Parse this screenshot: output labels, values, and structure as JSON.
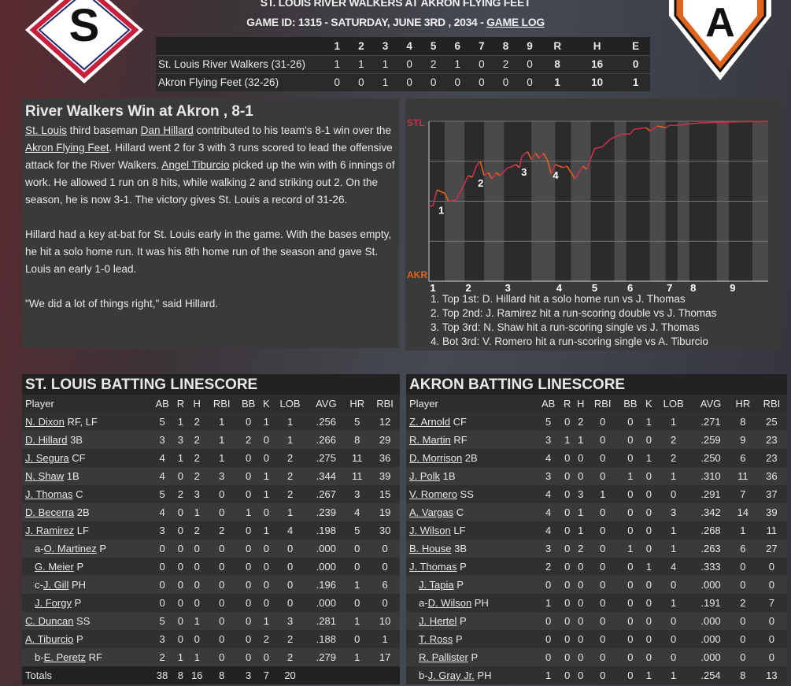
{
  "header": {
    "title": "ST. LOUIS RIVER WALKERS AT AKRON FLYING FEET",
    "game_info": "GAME ID: 1315 - SATURDAY, JUNE 3RD , 2034 - ",
    "game_log_link": "GAME LOG"
  },
  "logos": {
    "home_letter": "A",
    "away_letter": "S"
  },
  "linescore": {
    "columns": [
      "",
      "1",
      "2",
      "3",
      "4",
      "5",
      "6",
      "7",
      "8",
      "9",
      "R",
      "H",
      "E"
    ],
    "rows": [
      [
        "St. Louis River Walkers (31-26)",
        "1",
        "1",
        "1",
        "0",
        "2",
        "1",
        "0",
        "2",
        "0",
        "8",
        "16",
        "0"
      ],
      [
        "Akron Flying Feet (32-26)",
        "0",
        "0",
        "1",
        "0",
        "0",
        "0",
        "0",
        "0",
        "0",
        "1",
        "10",
        "1"
      ]
    ]
  },
  "article": {
    "headline": "River Walkers Win at Akron , 8-1",
    "p1": [
      {
        "t": "St. Louis",
        "link": true
      },
      {
        "t": " third baseman "
      },
      {
        "t": "Dan Hillard",
        "link": true
      },
      {
        "t": " contributed to his team's 8-1 win over the "
      },
      {
        "t": "Akron Flying Feet",
        "link": true
      },
      {
        "t": ". Hillard went 2 for 3 with 3 runs scored to lead the offensive attack for the River Walkers. "
      },
      {
        "t": "Angel Tiburcio",
        "link": true
      },
      {
        "t": " picked up the win with 6 innings of work. He allowed 1 run on 8 hits, while walking 2 and striking out 2. On the season, he is now 3-1. The victory gives St. Louis a record of 31-26."
      }
    ],
    "p2": "Hillard had a key at-bat for St. Louis early in the game. With the bases empty, he hit a solo home run. It was his 8th home run of the season and gave St. Louis an early 1-0 lead.",
    "p3": "\"We did a lot of things right,\" said Hillard."
  },
  "chart_data": {
    "type": "line",
    "top_label": "STL",
    "bottom_label": "AKR",
    "ylim": [
      0,
      100
    ],
    "xlim": [
      0,
      86
    ],
    "grid": true,
    "colors": {
      "stl": "#c8304c",
      "akr": "#e0641e"
    },
    "inning_ticks": [
      {
        "label": "1",
        "x": 1
      },
      {
        "label": "2",
        "x": 10
      },
      {
        "label": "3",
        "x": 20
      },
      {
        "label": "4",
        "x": 33
      },
      {
        "label": "5",
        "x": 42
      },
      {
        "label": "6",
        "x": 51
      },
      {
        "label": "7",
        "x": 61
      },
      {
        "label": "8",
        "x": 67
      },
      {
        "label": "9",
        "x": 77
      }
    ],
    "shaded_ranges": [
      [
        4,
        9
      ],
      [
        14,
        19
      ],
      [
        26,
        32
      ],
      [
        36,
        41
      ],
      [
        47,
        50
      ],
      [
        56,
        60
      ],
      [
        63,
        66
      ],
      [
        73,
        76
      ],
      [
        82,
        86
      ]
    ],
    "points": [
      [
        0,
        47
      ],
      [
        1,
        47
      ],
      [
        2,
        57
      ],
      [
        4,
        55
      ],
      [
        5,
        50
      ],
      [
        7,
        51
      ],
      [
        10,
        66
      ],
      [
        11,
        65
      ],
      [
        12,
        72
      ],
      [
        13,
        75
      ],
      [
        14,
        66
      ],
      [
        15,
        68
      ],
      [
        16,
        64
      ],
      [
        17,
        68
      ],
      [
        18,
        66
      ],
      [
        20,
        71
      ],
      [
        20.5,
        71
      ],
      [
        22,
        73
      ],
      [
        23,
        71
      ],
      [
        23.5,
        78
      ],
      [
        25,
        81
      ],
      [
        26,
        76
      ],
      [
        27,
        80
      ],
      [
        28,
        77
      ],
      [
        29,
        80
      ],
      [
        30,
        76
      ],
      [
        31,
        67
      ],
      [
        32,
        73
      ],
      [
        34,
        71
      ],
      [
        35,
        72
      ],
      [
        37,
        64
      ],
      [
        39,
        72
      ],
      [
        40,
        70
      ],
      [
        42,
        83
      ],
      [
        44,
        84
      ],
      [
        46,
        89
      ],
      [
        47,
        90
      ],
      [
        49,
        92
      ],
      [
        51,
        92
      ],
      [
        52,
        95
      ],
      [
        55,
        96
      ],
      [
        56,
        94
      ],
      [
        58,
        97
      ],
      [
        60,
        96
      ],
      [
        61,
        97.5
      ],
      [
        63,
        97.5
      ],
      [
        66,
        98.5
      ],
      [
        69,
        99
      ],
      [
        74,
        99.5
      ],
      [
        86,
        100
      ]
    ],
    "markers": [
      {
        "label": "1",
        "x": 2,
        "y": 47
      },
      {
        "label": "2",
        "x": 12,
        "y": 64
      },
      {
        "label": "3",
        "x": 23,
        "y": 71
      },
      {
        "label": "4",
        "x": 31,
        "y": 69
      }
    ],
    "notes": [
      "1. Top 1st: D. Hillard hit a solo home run vs J. Thomas",
      "2. Top 2nd: J. Ramirez hit a run-scoring double vs J. Thomas",
      "3. Top 3rd: N. Shaw hit a run-scoring single vs J. Thomas",
      "4. Bot 3rd: V. Romero hit a run-scoring single vs A. Tiburcio"
    ]
  },
  "batting": [
    {
      "title": "ST. LOUIS BATTING LINESCORE",
      "columns": [
        "Player",
        "AB",
        "R",
        "H",
        "RBI",
        "BB",
        "K",
        "LOB",
        "AVG",
        "HR",
        "RBI"
      ],
      "rows": [
        {
          "pre": "",
          "name": "N. Dixon",
          "pos": " RF, LF",
          "ind": 0,
          "s": [
            "5",
            "1",
            "2",
            "1",
            "0",
            "1",
            "1",
            ".256",
            "5",
            "12"
          ]
        },
        {
          "pre": "",
          "name": "D. Hillard",
          "pos": " 3B",
          "ind": 0,
          "s": [
            "3",
            "3",
            "2",
            "1",
            "2",
            "0",
            "1",
            ".266",
            "8",
            "29"
          ]
        },
        {
          "pre": "",
          "name": "J. Segura",
          "pos": " CF",
          "ind": 0,
          "s": [
            "4",
            "1",
            "2",
            "1",
            "0",
            "0",
            "2",
            ".275",
            "11",
            "36"
          ]
        },
        {
          "pre": "",
          "name": "N. Shaw",
          "pos": " 1B",
          "ind": 0,
          "s": [
            "4",
            "0",
            "2",
            "3",
            "0",
            "1",
            "2",
            ".344",
            "11",
            "39"
          ]
        },
        {
          "pre": "",
          "name": "J. Thomas",
          "pos": " C",
          "ind": 0,
          "s": [
            "5",
            "2",
            "3",
            "0",
            "0",
            "1",
            "2",
            ".267",
            "3",
            "15"
          ]
        },
        {
          "pre": "",
          "name": "D. Becerra",
          "pos": " 2B",
          "ind": 0,
          "s": [
            "4",
            "0",
            "1",
            "0",
            "1",
            "0",
            "1",
            ".239",
            "4",
            "19"
          ]
        },
        {
          "pre": "",
          "name": "J. Ramirez",
          "pos": " LF",
          "ind": 0,
          "s": [
            "3",
            "0",
            "2",
            "2",
            "0",
            "1",
            "4",
            ".198",
            "5",
            "30"
          ]
        },
        {
          "pre": "a-",
          "name": "O. Martinez",
          "pos": " P",
          "ind": 1,
          "s": [
            "0",
            "0",
            "0",
            "0",
            "0",
            "0",
            "0",
            ".000",
            "0",
            "0"
          ]
        },
        {
          "pre": "",
          "name": "G. Meier",
          "pos": " P",
          "ind": 1,
          "s": [
            "0",
            "0",
            "0",
            "0",
            "0",
            "0",
            "0",
            ".000",
            "0",
            "0"
          ]
        },
        {
          "pre": "c-",
          "name": "J. Gill",
          "pos": " PH",
          "ind": 1,
          "s": [
            "0",
            "0",
            "0",
            "0",
            "0",
            "0",
            "0",
            ".196",
            "1",
            "6"
          ]
        },
        {
          "pre": "",
          "name": "J. Forgy",
          "pos": " P",
          "ind": 1,
          "s": [
            "0",
            "0",
            "0",
            "0",
            "0",
            "0",
            "0",
            ".000",
            "0",
            "0"
          ]
        },
        {
          "pre": "",
          "name": "C. Duncan",
          "pos": " SS",
          "ind": 0,
          "s": [
            "5",
            "0",
            "1",
            "0",
            "0",
            "1",
            "3",
            ".281",
            "1",
            "10"
          ]
        },
        {
          "pre": "",
          "name": "A. Tiburcio",
          "pos": " P",
          "ind": 0,
          "s": [
            "3",
            "0",
            "0",
            "0",
            "0",
            "2",
            "2",
            ".188",
            "0",
            "1"
          ]
        },
        {
          "pre": "b-",
          "name": "E. Peretz",
          "pos": " RF",
          "ind": 1,
          "s": [
            "2",
            "1",
            "1",
            "0",
            "0",
            "0",
            "2",
            ".279",
            "1",
            "17"
          ]
        }
      ],
      "totals": {
        "label": "Totals",
        "s": [
          "38",
          "8",
          "16",
          "8",
          "3",
          "7",
          "20",
          "",
          "",
          ""
        ]
      }
    },
    {
      "title": "AKRON BATTING LINESCORE",
      "columns": [
        "Player",
        "AB",
        "R",
        "H",
        "RBI",
        "BB",
        "K",
        "LOB",
        "AVG",
        "HR",
        "RBI"
      ],
      "rows": [
        {
          "pre": "",
          "name": "Z. Arnold",
          "pos": " CF",
          "ind": 0,
          "s": [
            "5",
            "0",
            "2",
            "0",
            "0",
            "1",
            "1",
            ".271",
            "8",
            "25"
          ]
        },
        {
          "pre": "",
          "name": "R. Martin",
          "pos": " RF",
          "ind": 0,
          "s": [
            "3",
            "1",
            "1",
            "0",
            "0",
            "0",
            "2",
            ".259",
            "9",
            "23"
          ]
        },
        {
          "pre": "",
          "name": "D. Morrison",
          "pos": " 2B",
          "ind": 0,
          "s": [
            "4",
            "0",
            "0",
            "0",
            "0",
            "1",
            "2",
            ".250",
            "6",
            "23"
          ]
        },
        {
          "pre": "",
          "name": "J. Polk",
          "pos": " 1B",
          "ind": 0,
          "s": [
            "3",
            "0",
            "0",
            "0",
            "1",
            "0",
            "1",
            ".310",
            "11",
            "36"
          ]
        },
        {
          "pre": "",
          "name": "V. Romero",
          "pos": " SS",
          "ind": 0,
          "s": [
            "4",
            "0",
            "3",
            "1",
            "0",
            "0",
            "0",
            ".291",
            "7",
            "37"
          ]
        },
        {
          "pre": "",
          "name": "A. Vargas",
          "pos": " C",
          "ind": 0,
          "s": [
            "4",
            "0",
            "1",
            "0",
            "0",
            "0",
            "3",
            ".342",
            "14",
            "39"
          ]
        },
        {
          "pre": "",
          "name": "J. Wilson",
          "pos": " LF",
          "ind": 0,
          "s": [
            "4",
            "0",
            "1",
            "0",
            "0",
            "0",
            "1",
            ".268",
            "1",
            "11"
          ]
        },
        {
          "pre": "",
          "name": "B. House",
          "pos": " 3B",
          "ind": 0,
          "s": [
            "3",
            "0",
            "2",
            "0",
            "1",
            "0",
            "1",
            ".263",
            "6",
            "27"
          ]
        },
        {
          "pre": "",
          "name": "J. Thomas",
          "pos": " P",
          "ind": 0,
          "s": [
            "2",
            "0",
            "0",
            "0",
            "0",
            "1",
            "4",
            ".333",
            "0",
            "0"
          ]
        },
        {
          "pre": "",
          "name": "J. Tapia",
          "pos": " P",
          "ind": 1,
          "s": [
            "0",
            "0",
            "0",
            "0",
            "0",
            "0",
            "0",
            ".000",
            "0",
            "0"
          ]
        },
        {
          "pre": "a-",
          "name": "D. Wilson",
          "pos": " PH",
          "ind": 1,
          "s": [
            "1",
            "0",
            "0",
            "0",
            "0",
            "0",
            "1",
            ".191",
            "2",
            "7"
          ]
        },
        {
          "pre": "",
          "name": "J. Hertel",
          "pos": " P",
          "ind": 1,
          "s": [
            "0",
            "0",
            "0",
            "0",
            "0",
            "0",
            "0",
            ".000",
            "0",
            "0"
          ]
        },
        {
          "pre": "",
          "name": "T. Ross",
          "pos": " P",
          "ind": 1,
          "s": [
            "0",
            "0",
            "0",
            "0",
            "0",
            "0",
            "0",
            ".000",
            "0",
            "0"
          ]
        },
        {
          "pre": "",
          "name": "R. Pallister",
          "pos": " P",
          "ind": 1,
          "s": [
            "0",
            "0",
            "0",
            "0",
            "0",
            "0",
            "0",
            ".000",
            "0",
            "0"
          ]
        },
        {
          "pre": "b-",
          "name": "J. Gray Jr.",
          "pos": " PH",
          "ind": 1,
          "s": [
            "1",
            "0",
            "0",
            "0",
            "0",
            "1",
            "1",
            ".254",
            "8",
            "13"
          ]
        }
      ]
    }
  ]
}
